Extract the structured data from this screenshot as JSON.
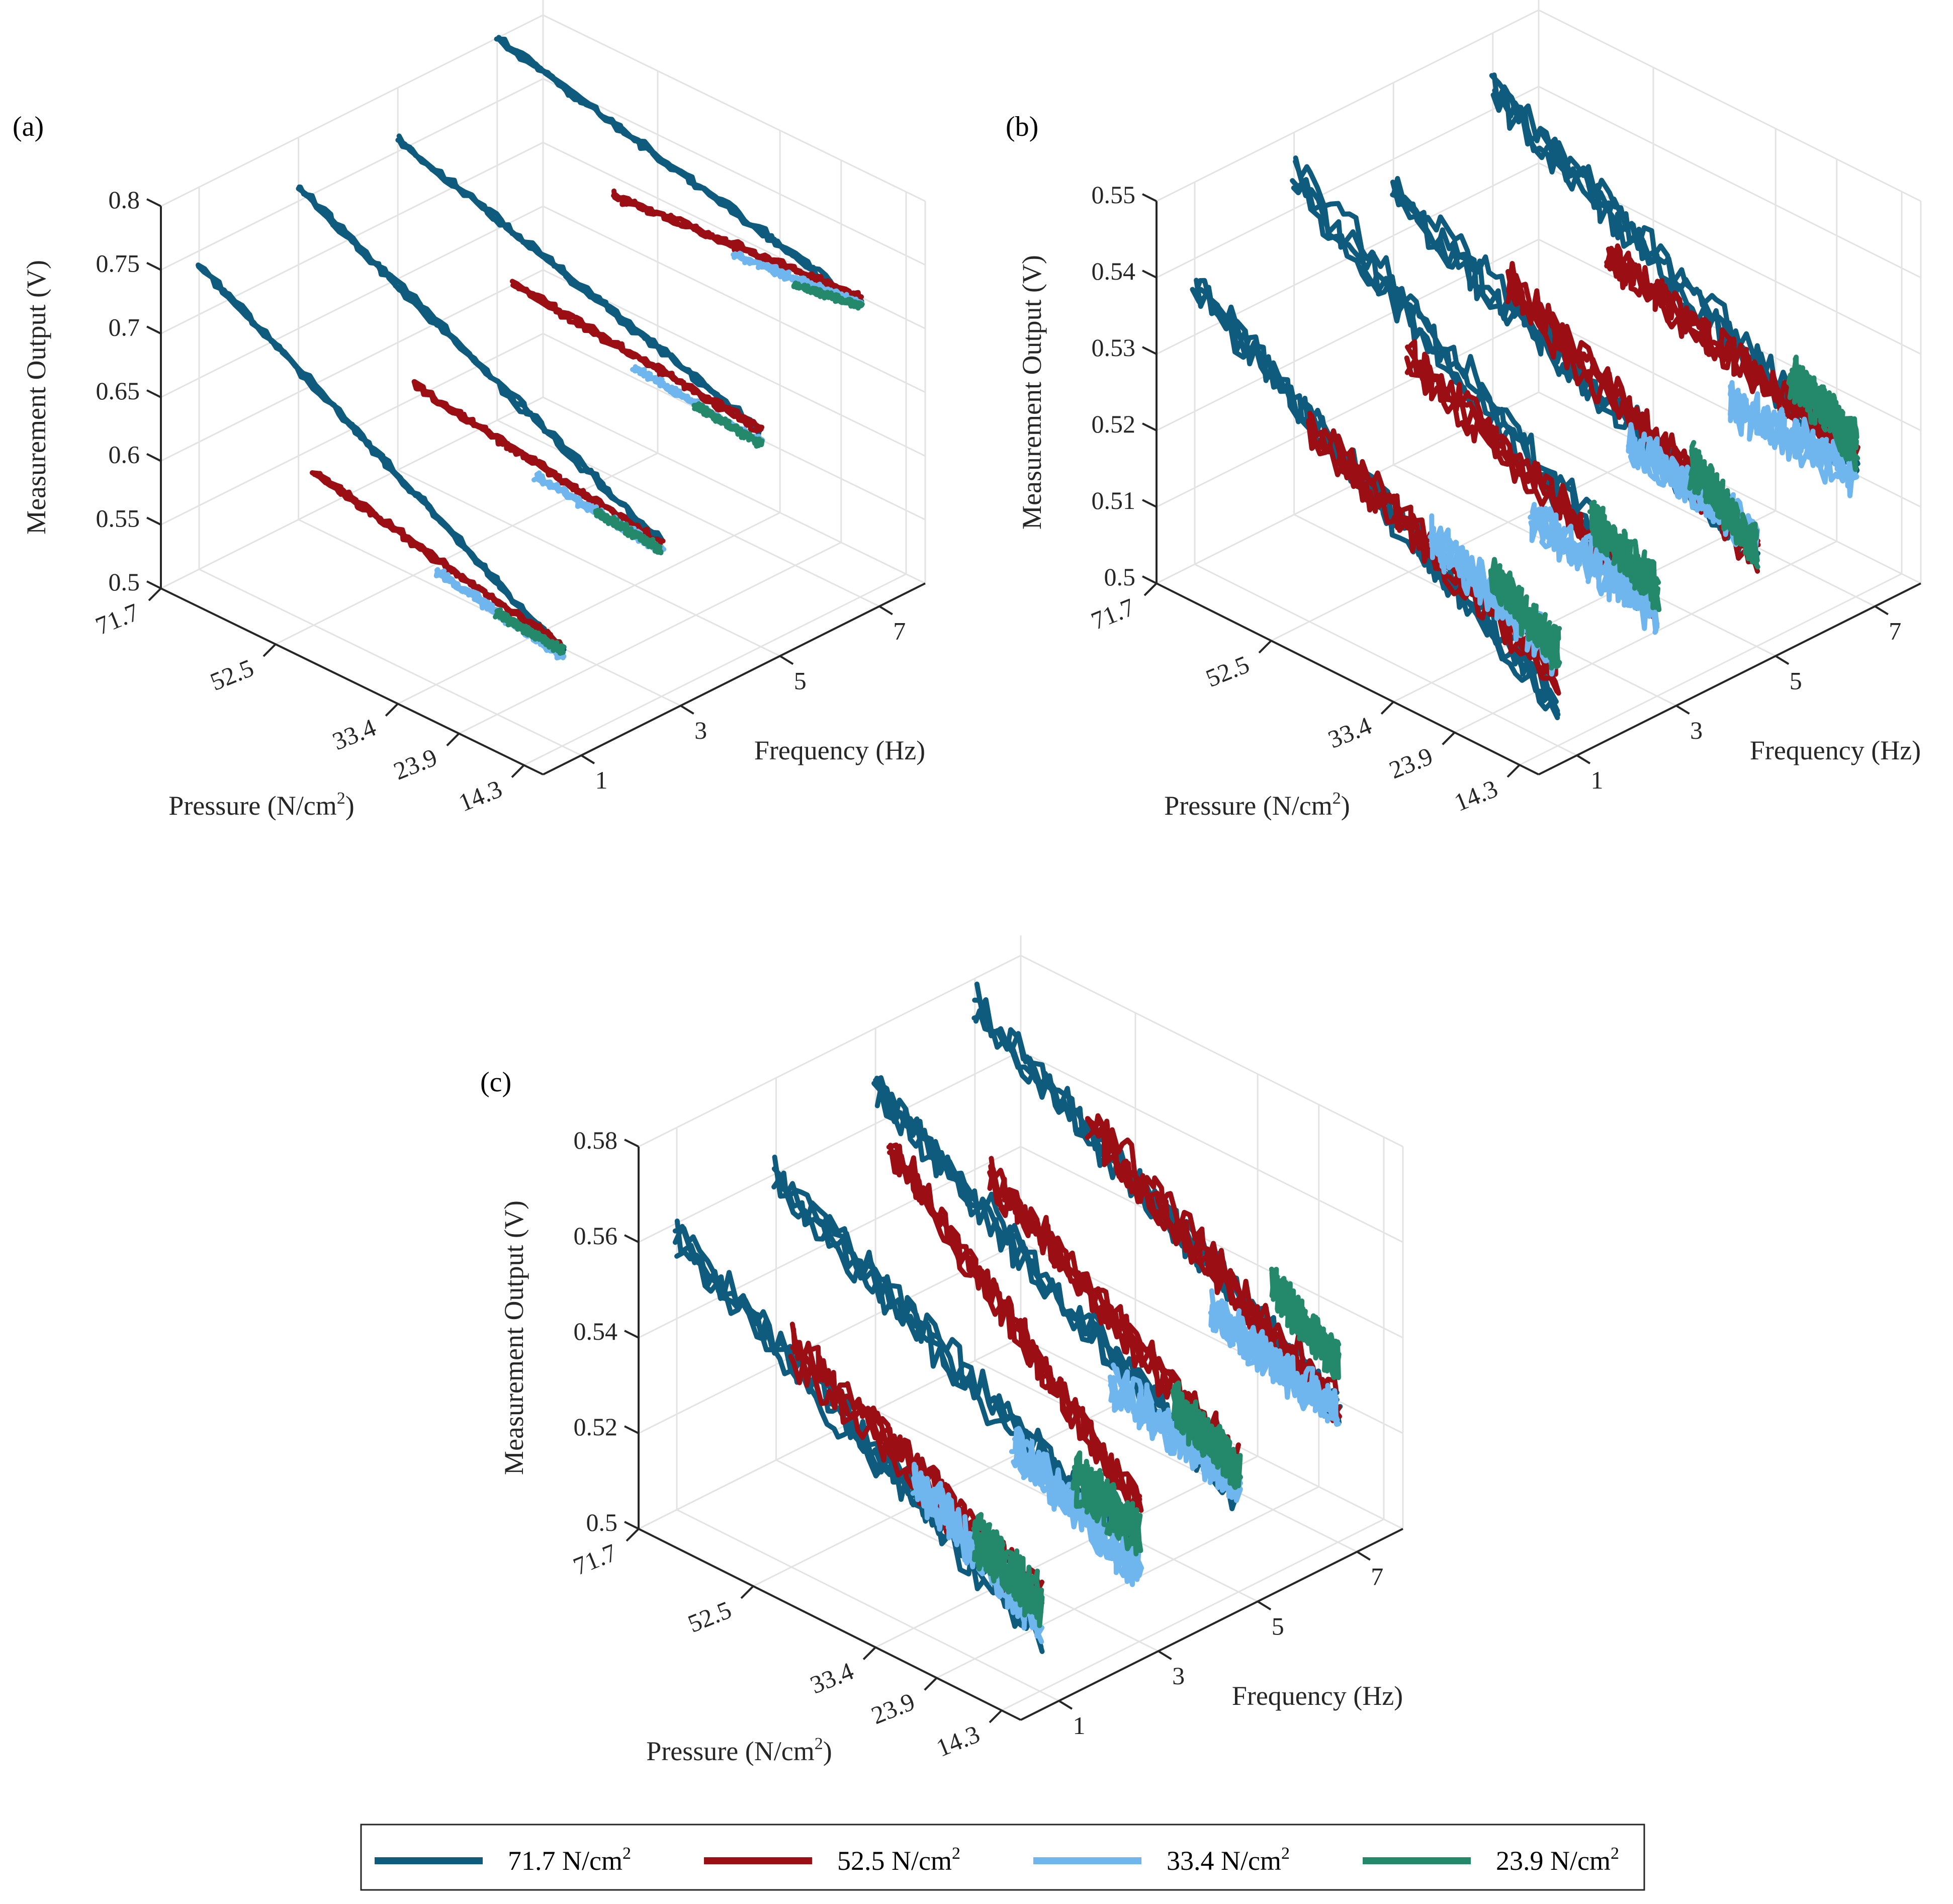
{
  "figure": {
    "legend": [
      {
        "label": "71.7 N/cm",
        "sup": "2",
        "color": "#0f5b7e"
      },
      {
        "label": "52.5 N/cm",
        "sup": "2",
        "color": "#9b0f14"
      },
      {
        "label": "33.4 N/cm",
        "sup": "2",
        "color": "#6fb6ee"
      },
      {
        "label": "23.9 N/cm",
        "sup": "2",
        "color": "#24896b"
      }
    ]
  },
  "chart_data": [
    {
      "panel": "(a)",
      "type": "line",
      "subtype": "3d-line",
      "zlabel": "Measurement Output (V)",
      "xlabel": "Pressure (N/cm",
      "xlabel_sup": "2",
      "xlabel_end": ")",
      "ylabel": "Frequency (Hz)",
      "pressure_ticks": [
        "71.7",
        "52.5",
        "33.4",
        "23.9",
        "14.3"
      ],
      "frequency_ticks": [
        "1",
        "3",
        "5",
        "7"
      ],
      "output_ticks": [
        "0.5",
        "0.55",
        "0.6",
        "0.65",
        "0.7",
        "0.75",
        "0.8"
      ],
      "zlim": [
        0.5,
        0.8
      ],
      "grid": true,
      "series": [
        {
          "name": "71.7 N/cm2",
          "color": "#0f5b7e",
          "traces": [
            {
              "freq": 1,
              "p_start": 71.7,
              "v_start": 0.74,
              "p_end": 14.3,
              "v_end": 0.575
            },
            {
              "freq": 3,
              "p_start": 71.7,
              "v_start": 0.76,
              "p_end": 14.3,
              "v_end": 0.62
            },
            {
              "freq": 5,
              "p_start": 71.7,
              "v_start": 0.76,
              "p_end": 14.3,
              "v_end": 0.67
            },
            {
              "freq": 7,
              "p_start": 71.7,
              "v_start": 0.8,
              "p_end": 14.3,
              "v_end": 0.73
            }
          ]
        },
        {
          "name": "52.5 N/cm2",
          "color": "#9b0f14",
          "traces": [
            {
              "freq": 1,
              "p_start": 52.5,
              "v_start": 0.62,
              "p_end": 14.3,
              "v_end": 0.578
            },
            {
              "freq": 3,
              "p_start": 52.5,
              "v_start": 0.65,
              "p_end": 14.3,
              "v_end": 0.62
            },
            {
              "freq": 5,
              "p_start": 52.5,
              "v_start": 0.69,
              "p_end": 14.3,
              "v_end": 0.67
            },
            {
              "freq": 7,
              "p_start": 52.5,
              "v_start": 0.72,
              "p_end": 14.3,
              "v_end": 0.735
            }
          ]
        },
        {
          "name": "33.4 N/cm2",
          "color": "#6fb6ee",
          "traces": [
            {
              "freq": 1,
              "p_start": 33.4,
              "v_start": 0.59,
              "p_end": 14.3,
              "v_end": 0.57
            },
            {
              "freq": 3,
              "p_start": 33.4,
              "v_start": 0.625,
              "p_end": 14.3,
              "v_end": 0.615
            },
            {
              "freq": 5,
              "p_start": 33.4,
              "v_start": 0.67,
              "p_end": 14.3,
              "v_end": 0.66
            },
            {
              "freq": 7,
              "p_start": 33.4,
              "v_start": 0.72,
              "p_end": 14.3,
              "v_end": 0.73
            }
          ]
        },
        {
          "name": "23.9 N/cm2",
          "color": "#24896b",
          "traces": [
            {
              "freq": 1,
              "p_start": 23.9,
              "v_start": 0.58,
              "p_end": 14.3,
              "v_end": 0.575
            },
            {
              "freq": 3,
              "p_start": 23.9,
              "v_start": 0.62,
              "p_end": 14.3,
              "v_end": 0.615
            },
            {
              "freq": 5,
              "p_start": 23.9,
              "v_start": 0.665,
              "p_end": 14.3,
              "v_end": 0.66
            },
            {
              "freq": 7,
              "p_start": 23.9,
              "v_start": 0.72,
              "p_end": 14.3,
              "v_end": 0.728
            }
          ]
        }
      ]
    },
    {
      "panel": "(b)",
      "type": "line",
      "subtype": "3d-line",
      "zlabel": "Measurement Output (V)",
      "xlabel": "Pressure (N/cm",
      "xlabel_sup": "2",
      "xlabel_end": ")",
      "ylabel": "Frequency (Hz)",
      "pressure_ticks": [
        "71.7",
        "52.5",
        "33.4",
        "23.9",
        "14.3"
      ],
      "frequency_ticks": [
        "1",
        "3",
        "5",
        "7"
      ],
      "output_ticks": [
        "0.5",
        "0.51",
        "0.52",
        "0.53",
        "0.54",
        "0.55"
      ],
      "zlim": [
        0.5,
        0.55
      ],
      "grid": true,
      "series": [
        {
          "name": "71.7 N/cm2",
          "color": "#0f5b7e",
          "traces": [
            {
              "freq": 1,
              "p_start": 71.7,
              "v_start": 0.537,
              "p_end": 14.3,
              "v_end": 0.506
            },
            {
              "freq": 3,
              "p_start": 71.7,
              "v_start": 0.545,
              "p_end": 14.3,
              "v_end": 0.512
            },
            {
              "freq": 5,
              "p_start": 71.7,
              "v_start": 0.536,
              "p_end": 14.3,
              "v_end": 0.513
            },
            {
              "freq": 7,
              "p_start": 71.7,
              "v_start": 0.543,
              "p_end": 14.3,
              "v_end": 0.517
            }
          ]
        },
        {
          "name": "52.5 N/cm2",
          "color": "#9b0f14",
          "traces": [
            {
              "freq": 1,
              "p_start": 52.5,
              "v_start": 0.526,
              "p_end": 14.3,
              "v_end": 0.51
            },
            {
              "freq": 3,
              "p_start": 52.5,
              "v_start": 0.528,
              "p_end": 14.3,
              "v_end": 0.512
            },
            {
              "freq": 5,
              "p_start": 52.5,
              "v_start": 0.531,
              "p_end": 14.3,
              "v_end": 0.512
            },
            {
              "freq": 7,
              "p_start": 52.5,
              "v_start": 0.528,
              "p_end": 14.3,
              "v_end": 0.518
            }
          ]
        },
        {
          "name": "33.4 N/cm2",
          "color": "#6fb6ee",
          "traces": [
            {
              "freq": 1,
              "p_start": 33.4,
              "v_start": 0.519,
              "p_end": 14.3,
              "v_end": 0.512
            },
            {
              "freq": 3,
              "p_start": 33.4,
              "v_start": 0.516,
              "p_end": 14.3,
              "v_end": 0.511
            },
            {
              "freq": 5,
              "p_start": 33.4,
              "v_start": 0.518,
              "p_end": 14.3,
              "v_end": 0.514
            },
            {
              "freq": 7,
              "p_start": 33.4,
              "v_start": 0.517,
              "p_end": 14.3,
              "v_end": 0.516
            }
          ]
        },
        {
          "name": "23.9 N/cm2",
          "color": "#24896b",
          "traces": [
            {
              "freq": 1,
              "p_start": 23.9,
              "v_start": 0.517,
              "p_end": 14.3,
              "v_end": 0.512
            },
            {
              "freq": 3,
              "p_start": 23.9,
              "v_start": 0.519,
              "p_end": 14.3,
              "v_end": 0.514
            },
            {
              "freq": 5,
              "p_start": 23.9,
              "v_start": 0.519,
              "p_end": 14.3,
              "v_end": 0.512
            },
            {
              "freq": 7,
              "p_start": 23.9,
              "v_start": 0.525,
              "p_end": 14.3,
              "v_end": 0.52
            }
          ]
        }
      ]
    },
    {
      "panel": "(c)",
      "type": "line",
      "subtype": "3d-line",
      "zlabel": "Measurement Output (V)",
      "xlabel": "Pressure (N/cm",
      "xlabel_sup": "2",
      "xlabel_end": ")",
      "ylabel": "Frequency (Hz)",
      "pressure_ticks": [
        "71.7",
        "52.5",
        "33.4",
        "23.9",
        "14.3"
      ],
      "frequency_ticks": [
        "1",
        "3",
        "5",
        "7"
      ],
      "output_ticks": [
        "0.5",
        "0.52",
        "0.54",
        "0.56",
        "0.58"
      ],
      "zlim": [
        0.5,
        0.58
      ],
      "grid": true,
      "series": [
        {
          "name": "71.7 N/cm2",
          "color": "#0f5b7e",
          "traces": [
            {
              "freq": 1,
              "p_start": 71.7,
              "v_start": 0.557,
              "p_end": 14.3,
              "v_end": 0.512
            },
            {
              "freq": 3,
              "p_start": 71.7,
              "v_start": 0.56,
              "p_end": 14.3,
              "v_end": 0.518
            },
            {
              "freq": 5,
              "p_start": 71.7,
              "v_start": 0.568,
              "p_end": 14.3,
              "v_end": 0.52
            },
            {
              "freq": 7,
              "p_start": 71.7,
              "v_start": 0.574,
              "p_end": 14.3,
              "v_end": 0.528
            }
          ]
        },
        {
          "name": "52.5 N/cm2",
          "color": "#9b0f14",
          "traces": [
            {
              "freq": 1,
              "p_start": 52.5,
              "v_start": 0.546,
              "p_end": 14.3,
              "v_end": 0.518
            },
            {
              "freq": 3,
              "p_start": 52.5,
              "v_start": 0.577,
              "p_end": 14.3,
              "v_end": 0.528
            },
            {
              "freq": 5,
              "p_start": 52.5,
              "v_start": 0.562,
              "p_end": 14.3,
              "v_end": 0.528
            },
            {
              "freq": 7,
              "p_start": 52.5,
              "v_start": 0.562,
              "p_end": 14.3,
              "v_end": 0.528
            }
          ]
        },
        {
          "name": "33.4 N/cm2",
          "color": "#6fb6ee",
          "traces": [
            {
              "freq": 1,
              "p_start": 33.4,
              "v_start": 0.532,
              "p_end": 14.3,
              "v_end": 0.515
            },
            {
              "freq": 3,
              "p_start": 33.4,
              "v_start": 0.528,
              "p_end": 14.3,
              "v_end": 0.514
            },
            {
              "freq": 5,
              "p_start": 33.4,
              "v_start": 0.53,
              "p_end": 14.3,
              "v_end": 0.522
            },
            {
              "freq": 7,
              "p_start": 33.4,
              "v_start": 0.535,
              "p_end": 14.3,
              "v_end": 0.527
            }
          ]
        },
        {
          "name": "23.9 N/cm2",
          "color": "#24896b",
          "traces": [
            {
              "freq": 1,
              "p_start": 23.9,
              "v_start": 0.526,
              "p_end": 14.3,
              "v_end": 0.519
            },
            {
              "freq": 3,
              "p_start": 23.9,
              "v_start": 0.528,
              "p_end": 14.3,
              "v_end": 0.522
            },
            {
              "freq": 5,
              "p_start": 23.9,
              "v_start": 0.532,
              "p_end": 14.3,
              "v_end": 0.525
            },
            {
              "freq": 7,
              "p_start": 23.9,
              "v_start": 0.546,
              "p_end": 14.3,
              "v_end": 0.536
            }
          ]
        }
      ]
    }
  ]
}
